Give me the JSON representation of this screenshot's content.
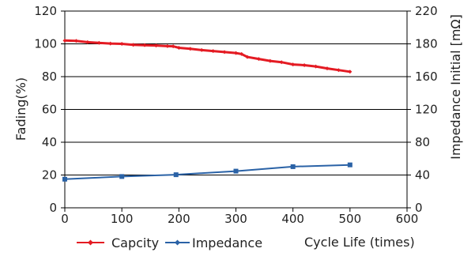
{
  "chart_data": {
    "type": "line",
    "xlabel": "Cycle Life (times)",
    "ylabel_left": "Fading(%)",
    "ylabel_right": "Impedance Initial [mΩ]",
    "x_ticks": [
      "0",
      "100",
      "200",
      "300",
      "400",
      "500",
      "600"
    ],
    "y_left_ticks": [
      "0",
      "20",
      "40",
      "60",
      "80",
      "100",
      "120"
    ],
    "y_right_ticks": [
      "0",
      "40",
      "80",
      "120",
      "160",
      "180",
      "220"
    ],
    "xlim": [
      0,
      600
    ],
    "ylim_left": [
      0,
      120
    ],
    "ylim_right": [
      0,
      220
    ],
    "grid": "horizontal",
    "legend_position": "bottom-left",
    "series": [
      {
        "name": "Capcity",
        "axis": "left",
        "color": "#e41b23",
        "marker": "diamond",
        "x": [
          0,
          20,
          40,
          60,
          80,
          100,
          120,
          140,
          160,
          180,
          190,
          200,
          220,
          240,
          260,
          280,
          300,
          310,
          320,
          340,
          360,
          380,
          400,
          420,
          440,
          460,
          480,
          500
        ],
        "values": [
          102,
          101.8,
          101,
          100.6,
          100.2,
          100,
          99.4,
          99.2,
          99,
          98.6,
          98.5,
          97.6,
          97,
          96.2,
          95.6,
          95,
          94.4,
          93.8,
          92,
          90.8,
          89.6,
          88.8,
          87.4,
          87,
          86.2,
          85,
          84,
          83
        ]
      },
      {
        "name": "Impedance",
        "axis": "right",
        "color": "#2a62a6",
        "marker": "square",
        "x": [
          0,
          100,
          195,
          300,
          400,
          500
        ],
        "values": [
          32,
          35,
          37,
          41,
          46,
          48
        ]
      }
    ]
  }
}
